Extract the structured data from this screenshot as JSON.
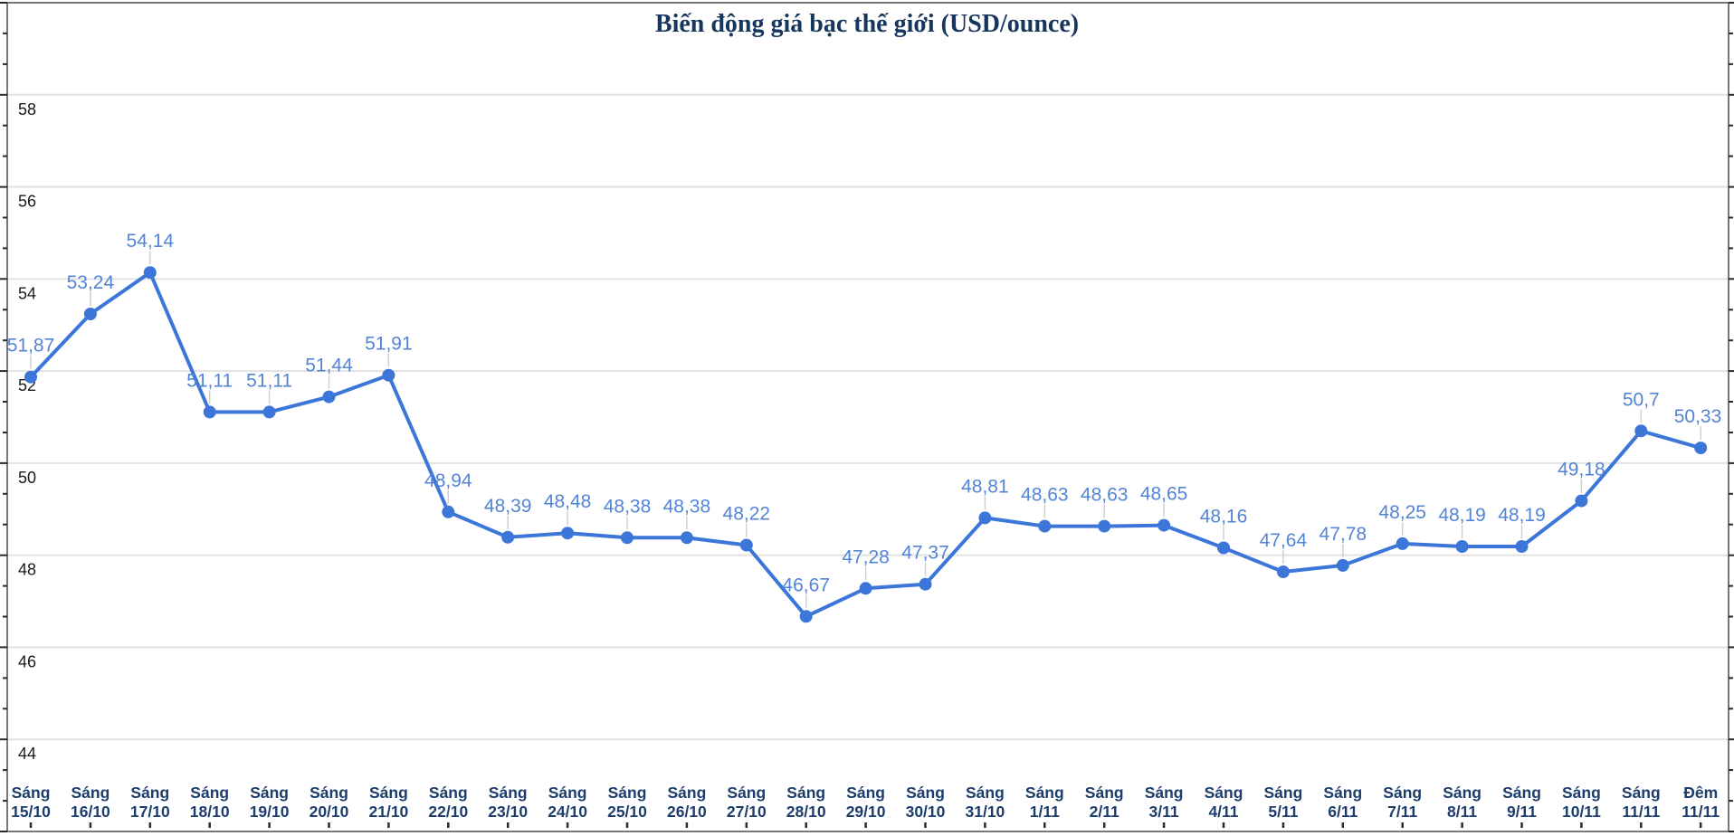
{
  "chart_data": {
    "type": "line",
    "title": "Biến động giá bạc thế giới (USD/ounce)",
    "categories": [
      "Sáng 15/10",
      "Sáng 16/10",
      "Sáng 17/10",
      "Sáng 18/10",
      "Sáng 19/10",
      "Sáng 20/10",
      "Sáng 21/10",
      "Sáng 22/10",
      "Sáng 23/10",
      "Sáng 24/10",
      "Sáng 25/10",
      "Sáng 26/10",
      "Sáng 27/10",
      "Sáng 28/10",
      "Sáng 29/10",
      "Sáng 30/10",
      "Sáng 31/10",
      "Sáng 1/11",
      "Sáng 2/11",
      "Sáng 3/11",
      "Sáng 4/11",
      "Sáng 5/11",
      "Sáng 6/11",
      "Sáng 7/11",
      "Sáng 8/11",
      "Sáng 9/11",
      "Sáng 10/11",
      "Sáng 11/11",
      "Đêm 11/11"
    ],
    "values": [
      51.87,
      53.24,
      54.14,
      51.11,
      51.11,
      51.44,
      51.91,
      48.94,
      48.39,
      48.48,
      48.38,
      48.38,
      48.22,
      46.67,
      47.28,
      47.37,
      48.81,
      48.63,
      48.63,
      48.65,
      48.16,
      47.64,
      47.78,
      48.25,
      48.19,
      48.19,
      49.18,
      50.7,
      50.33
    ],
    "point_labels": [
      "51,87",
      "53,24",
      "54,14",
      "51,11",
      "51,11",
      "51,44",
      "51,91",
      "48,94",
      "48,39",
      "48,48",
      "48,38",
      "48,38",
      "48,22",
      "46,67",
      "47,28",
      "47,37",
      "48,81",
      "48,63",
      "48,63",
      "48,65",
      "48,16",
      "47,64",
      "47,78",
      "48,25",
      "48,19",
      "48,19",
      "49,18",
      "50,7",
      "50,33"
    ],
    "y_tick_labels": [
      "58",
      "56",
      "54",
      "52",
      "50",
      "48",
      "46",
      "44"
    ],
    "y_tick_values": [
      58,
      56,
      54,
      52,
      50,
      48,
      46,
      44
    ],
    "ylim": [
      42,
      60
    ],
    "xlabel": "",
    "ylabel": "",
    "grid": true,
    "legend_position": "none",
    "colors": {
      "line": "#3b76d8",
      "marker": "#3b76d8",
      "point_label": "#5384d6",
      "title": "#17365d",
      "x_label": "#1d3d6d",
      "y_label": "#1a1a1a",
      "grid": "#e2e2e2",
      "axis": "#555555",
      "tick": "#2a2a2a",
      "leader": "#d0d0d0",
      "background": "#ffffff"
    }
  }
}
